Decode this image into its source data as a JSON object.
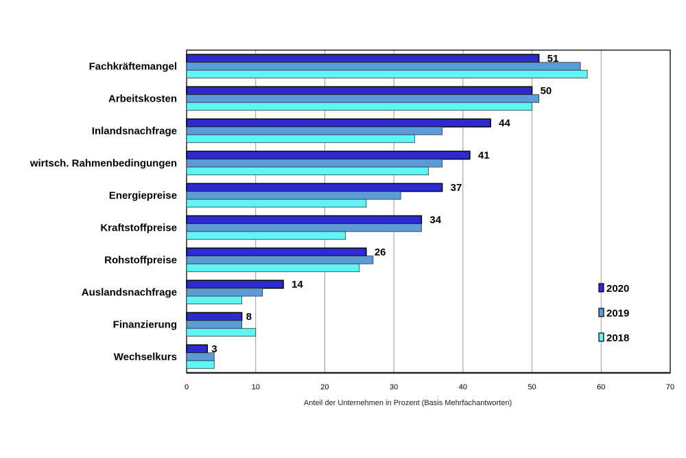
{
  "chart_data": {
    "type": "bar",
    "orientation": "horizontal",
    "title": "",
    "xlabel": "Anteil der Unternehmen in Prozent (Basis Mehrfachantworten)",
    "ylabel": "",
    "xlim": [
      0,
      70
    ],
    "xticks": [
      0,
      10,
      20,
      30,
      40,
      50,
      60,
      70
    ],
    "grid": true,
    "legend_position": "right",
    "categories": [
      "Fachkräftemangel",
      "Arbeitskosten",
      "Inlandsnachfrage",
      "wirtsch. Rahmenbedingungen",
      "Energiepreise",
      "Kraftstoffpreise",
      "Rohstoffpreise",
      "Auslandsnachfrage",
      "Finanzierung",
      "Wechselkurs"
    ],
    "series": [
      {
        "name": "2020",
        "color": "#2b2bd0",
        "values": [
          51,
          50,
          44,
          41,
          37,
          34,
          26,
          14,
          8,
          3
        ],
        "labels_shown": true
      },
      {
        "name": "2019",
        "color": "#5b9bd8",
        "values": [
          57,
          51,
          37,
          37,
          31,
          34,
          27,
          11,
          8,
          4
        ]
      },
      {
        "name": "2018",
        "color": "#5ff5f5",
        "values": [
          58,
          50,
          33,
          35,
          26,
          23,
          25,
          8,
          10,
          4
        ]
      }
    ]
  }
}
